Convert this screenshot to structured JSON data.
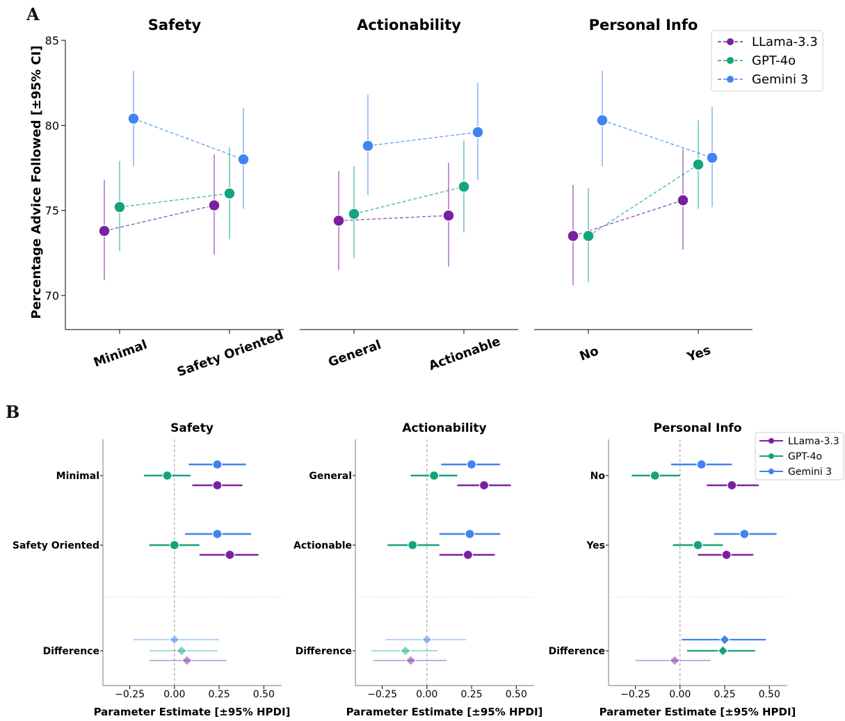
{
  "figure": {
    "panel_a_letter": "A",
    "panel_b_letter": "B"
  },
  "colors": {
    "LLama-3.3": "#7b1fa2",
    "GPT-4o": "#14a37f",
    "Gemini 3": "#3f84f0"
  },
  "chart_data": [
    {
      "panel": "A",
      "type": "scatter",
      "ylabel": "Percentage Advice Followed [±95% CI]",
      "ylim": [
        68,
        85
      ],
      "yticks": [
        70,
        75,
        80,
        85
      ],
      "legend": [
        "LLama-3.3",
        "GPT-4o",
        "Gemini 3"
      ],
      "legend_placement": "top-right",
      "subplots": [
        {
          "title": "Safety",
          "categories": [
            "Minimal",
            "Safety Oriented"
          ],
          "series": [
            {
              "name": "LLama-3.3",
              "values": [
                73.8,
                75.3
              ],
              "ci_low": [
                70.9,
                72.4
              ],
              "ci_high": [
                76.8,
                78.3
              ]
            },
            {
              "name": "GPT-4o",
              "values": [
                75.2,
                76.0
              ],
              "ci_low": [
                72.6,
                73.3
              ],
              "ci_high": [
                77.9,
                78.7
              ]
            },
            {
              "name": "Gemini 3",
              "values": [
                80.4,
                78.0
              ],
              "ci_low": [
                77.6,
                75.1
              ],
              "ci_high": [
                83.2,
                81.0
              ]
            }
          ]
        },
        {
          "title": "Actionability",
          "categories": [
            "General",
            "Actionable"
          ],
          "series": [
            {
              "name": "LLama-3.3",
              "values": [
                74.4,
                74.7
              ],
              "ci_low": [
                71.5,
                71.7
              ],
              "ci_high": [
                77.3,
                77.8
              ]
            },
            {
              "name": "GPT-4o",
              "values": [
                74.8,
                76.4
              ],
              "ci_low": [
                72.2,
                73.7
              ],
              "ci_high": [
                77.6,
                79.1
              ]
            },
            {
              "name": "Gemini 3",
              "values": [
                78.8,
                79.6
              ],
              "ci_low": [
                75.9,
                76.8
              ],
              "ci_high": [
                81.8,
                82.5
              ]
            }
          ]
        },
        {
          "title": "Personal Info",
          "categories": [
            "No",
            "Yes"
          ],
          "series": [
            {
              "name": "LLama-3.3",
              "values": [
                73.5,
                75.6
              ],
              "ci_low": [
                70.6,
                72.7
              ],
              "ci_high": [
                76.5,
                78.6
              ]
            },
            {
              "name": "GPT-4o",
              "values": [
                73.5,
                77.7
              ],
              "ci_low": [
                70.8,
                75.1
              ],
              "ci_high": [
                76.3,
                80.3
              ]
            },
            {
              "name": "Gemini 3",
              "values": [
                80.3,
                78.1
              ],
              "ci_low": [
                77.6,
                75.2
              ],
              "ci_high": [
                83.2,
                81.1
              ]
            }
          ]
        }
      ]
    },
    {
      "panel": "B",
      "type": "scatter",
      "xlabel": "Parameter Estimate [±95% HPDI]",
      "xlim": [
        -0.4,
        0.6
      ],
      "xticks": [
        -0.25,
        0.0,
        0.25,
        0.5
      ],
      "xtick_labels": [
        "−0.25",
        "0.00",
        "0.25",
        "0.50"
      ],
      "legend": [
        "LLama-3.3",
        "GPT-4o",
        "Gemini 3"
      ],
      "legend_placement": "top-right",
      "subplots": [
        {
          "title": "Safety",
          "rows": [
            "Minimal",
            "Safety Oriented",
            "Difference"
          ],
          "series": [
            {
              "name": "LLama-3.3",
              "values": [
                0.24,
                0.31,
                0.07
              ],
              "low": [
                0.1,
                0.14,
                -0.14
              ],
              "high": [
                0.38,
                0.47,
                0.29
              ]
            },
            {
              "name": "GPT-4o",
              "values": [
                -0.04,
                0.0,
                0.04
              ],
              "low": [
                -0.17,
                -0.14,
                -0.14
              ],
              "high": [
                0.09,
                0.14,
                0.24
              ]
            },
            {
              "name": "Gemini 3",
              "values": [
                0.24,
                0.24,
                0.0
              ],
              "low": [
                0.08,
                0.06,
                -0.23
              ],
              "high": [
                0.4,
                0.43,
                0.25
              ]
            }
          ]
        },
        {
          "title": "Actionability",
          "rows": [
            "General",
            "Actionable",
            "Difference"
          ],
          "series": [
            {
              "name": "LLama-3.3",
              "values": [
                0.32,
                0.23,
                -0.09
              ],
              "low": [
                0.17,
                0.07,
                -0.3
              ],
              "high": [
                0.47,
                0.38,
                0.11
              ]
            },
            {
              "name": "GPT-4o",
              "values": [
                0.04,
                -0.08,
                -0.12
              ],
              "low": [
                -0.09,
                -0.22,
                -0.31
              ],
              "high": [
                0.17,
                0.07,
                0.06
              ]
            },
            {
              "name": "Gemini 3",
              "values": [
                0.25,
                0.24,
                0.0
              ],
              "low": [
                0.08,
                0.07,
                -0.23
              ],
              "high": [
                0.41,
                0.41,
                0.22
              ]
            }
          ]
        },
        {
          "title": "Personal Info",
          "rows": [
            "No",
            "Yes",
            "Difference"
          ],
          "series": [
            {
              "name": "LLama-3.3",
              "values": [
                0.29,
                0.26,
                -0.03
              ],
              "low": [
                0.15,
                0.1,
                -0.25
              ],
              "high": [
                0.44,
                0.41,
                0.17
              ]
            },
            {
              "name": "GPT-4o",
              "values": [
                -0.14,
                0.1,
                0.24
              ],
              "low": [
                -0.27,
                -0.04,
                0.04
              ],
              "high": [
                0.0,
                0.24,
                0.42
              ]
            },
            {
              "name": "Gemini 3",
              "values": [
                0.12,
                0.36,
                0.25
              ],
              "low": [
                -0.05,
                0.19,
                0.01
              ],
              "high": [
                0.29,
                0.54,
                0.48
              ]
            }
          ]
        }
      ]
    }
  ]
}
